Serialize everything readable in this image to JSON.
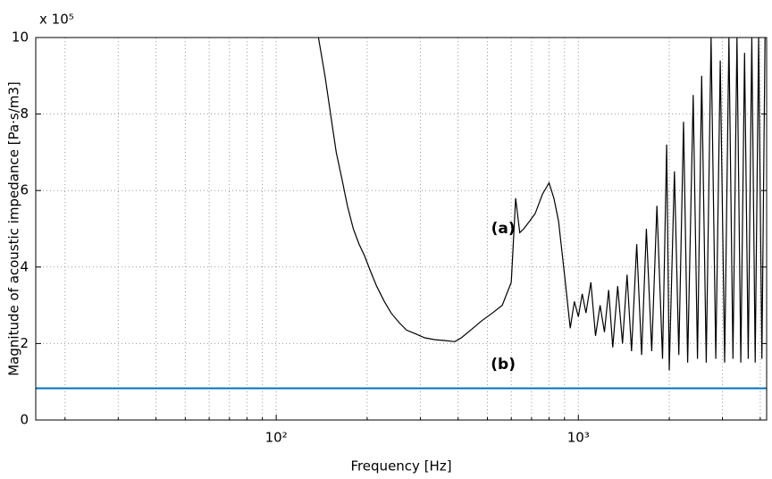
{
  "chart_data": {
    "type": "line",
    "xlabel": "Frequency [Hz]",
    "ylabel": "Magnitude of acoustic impedance [Pa·s/m3]",
    "y_exponent_label": "x 10⁵",
    "xscale": "log",
    "xlim": [
      16,
      4200
    ],
    "ylim": [
      0,
      10
    ],
    "xticks": [
      {
        "value": 100,
        "label": "10²"
      },
      {
        "value": 1000,
        "label": "10³"
      }
    ],
    "xminor_ticks": [
      20,
      30,
      40,
      50,
      60,
      70,
      80,
      90,
      200,
      300,
      400,
      500,
      600,
      700,
      800,
      900,
      2000,
      3000,
      4000
    ],
    "yticks": [
      0,
      2,
      4,
      6,
      8,
      10
    ],
    "grid": true,
    "annotations": [
      {
        "text": "(a)",
        "x": 110,
        "y": 5.0
      },
      {
        "text": "(b)",
        "x": 110,
        "y": 1.45
      }
    ],
    "series": [
      {
        "name": "(a)",
        "color": "#000000",
        "x": [
          138,
          145,
          152,
          158,
          165,
          172,
          180,
          188,
          196,
          205,
          215,
          228,
          240,
          255,
          270,
          290,
          310,
          335,
          360,
          390,
          410,
          440,
          480,
          520,
          560,
          600,
          620,
          640,
          660,
          690,
          720,
          760,
          800,
          830,
          860,
          900,
          940,
          970,
          1000,
          1030,
          1060,
          1100,
          1140,
          1180,
          1220,
          1260,
          1300,
          1350,
          1400,
          1450,
          1500,
          1560,
          1620,
          1680,
          1750,
          1820,
          1900,
          1960,
          2000,
          2080,
          2150,
          2230,
          2300,
          2400,
          2480,
          2560,
          2650,
          2750,
          2850,
          2950,
          3050,
          3150,
          3250,
          3350,
          3450,
          3550,
          3650,
          3750,
          3850,
          3950,
          4050,
          4150
        ],
        "values": [
          10,
          9.0,
          7.9,
          7.0,
          6.3,
          5.6,
          5.0,
          4.6,
          4.3,
          3.9,
          3.5,
          3.1,
          2.8,
          2.55,
          2.35,
          2.25,
          2.15,
          2.1,
          2.08,
          2.05,
          2.15,
          2.35,
          2.6,
          2.8,
          3.0,
          3.6,
          5.8,
          4.9,
          5.0,
          5.2,
          5.4,
          5.9,
          6.2,
          5.8,
          5.2,
          3.8,
          2.4,
          3.1,
          2.7,
          3.3,
          2.8,
          3.6,
          2.2,
          3.0,
          2.3,
          3.4,
          1.9,
          3.5,
          2.0,
          3.8,
          1.8,
          4.6,
          1.7,
          5.0,
          1.8,
          5.6,
          1.6,
          7.2,
          1.3,
          6.5,
          1.7,
          7.8,
          1.5,
          8.5,
          1.6,
          9.0,
          1.5,
          10,
          1.6,
          9.4,
          1.5,
          10,
          1.6,
          10,
          1.5,
          9.6,
          1.6,
          10,
          1.5,
          10,
          1.6,
          10
        ]
      },
      {
        "name": "(b)",
        "color": "#0072bd",
        "x": [
          16,
          4200
        ],
        "values": [
          0.83,
          0.83
        ]
      }
    ]
  }
}
